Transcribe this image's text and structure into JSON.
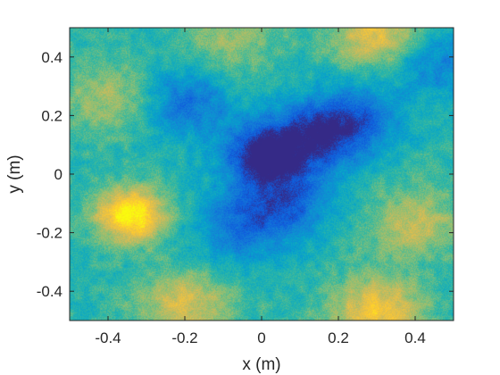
{
  "chart_data": {
    "type": "heatmap",
    "xlabel": "x (m)",
    "ylabel": "y (m)",
    "xlim": [
      -0.5,
      0.5
    ],
    "ylim": [
      -0.5,
      0.5
    ],
    "x_ticks": [
      -0.4,
      -0.2,
      0,
      0.2,
      0.4
    ],
    "x_tick_labels": [
      "-0.4",
      "-0.2",
      "0",
      "0.2",
      "0.4"
    ],
    "y_ticks": [
      0.4,
      0.2,
      0,
      -0.2,
      -0.4
    ],
    "y_tick_labels": [
      "0.4",
      "0.2",
      "0",
      "-0.2",
      "-0.4"
    ],
    "colormap": "parula",
    "colorbar": false,
    "grid": false,
    "colors": [
      "#352a87",
      "#0f5cdd",
      "#1481d6",
      "#06a4ca",
      "#2eb7a4",
      "#87bf77",
      "#d1bb59",
      "#fec832",
      "#f9fb0e"
    ],
    "field_features": [
      {
        "label": "minimum",
        "x": 0.0,
        "y": 0.06,
        "level": 0.0
      },
      {
        "label": "low",
        "x": 0.12,
        "y": 0.12,
        "level": 0.12
      },
      {
        "label": "low",
        "x": 0.24,
        "y": 0.18,
        "level": 0.15
      },
      {
        "label": "low",
        "x": -0.2,
        "y": 0.24,
        "level": 0.2
      },
      {
        "label": "low",
        "x": 0.07,
        "y": -0.1,
        "level": 0.18
      },
      {
        "label": "low",
        "x": -0.06,
        "y": -0.18,
        "level": 0.22
      },
      {
        "label": "low",
        "x": 0.46,
        "y": 0.38,
        "level": 0.26
      },
      {
        "label": "maximum",
        "x": -0.34,
        "y": -0.14,
        "level": 1.0
      },
      {
        "label": "high",
        "x": 0.3,
        "y": -0.47,
        "level": 0.84
      },
      {
        "label": "high",
        "x": 0.3,
        "y": 0.48,
        "level": 0.8
      },
      {
        "label": "high",
        "x": -0.2,
        "y": -0.45,
        "level": 0.76
      },
      {
        "label": "high",
        "x": 0.4,
        "y": -0.17,
        "level": 0.72
      },
      {
        "label": "high",
        "x": -0.39,
        "y": 0.26,
        "level": 0.7
      },
      {
        "label": "high",
        "x": -0.08,
        "y": 0.47,
        "level": 0.66
      }
    ]
  }
}
